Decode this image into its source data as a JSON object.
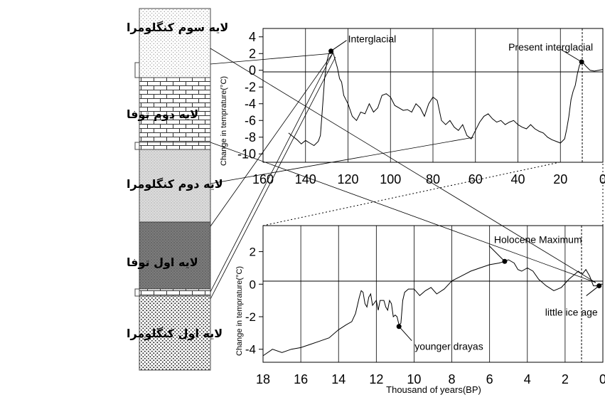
{
  "column": {
    "layers": [
      {
        "label": "لایه سوم کنگلومرا",
        "pattern": "fine-dots"
      },
      {
        "label": "لایه دوم توفا",
        "pattern": "bricks"
      },
      {
        "label": "لایه دوم کنگلومرا",
        "pattern": "light-dots"
      },
      {
        "label": "لایه اول توفا",
        "pattern": "dark-stipple"
      },
      {
        "label": "لایه اول کنگلومرا",
        "pattern": "coarse-dots"
      }
    ]
  },
  "chart_data": [
    {
      "type": "line",
      "ylabel": "Change in temprature(°C)",
      "xlabel": "",
      "xlim": [
        160,
        0
      ],
      "ylim": [
        -11,
        5
      ],
      "x_ticks": [
        160,
        140,
        120,
        100,
        80,
        60,
        40,
        20,
        0
      ],
      "y_ticks": [
        4,
        2,
        0,
        -2,
        -4,
        -6,
        -8,
        -10
      ],
      "x_tick_labels": [
        "160",
        "140",
        "120",
        "100",
        "80",
        "60",
        "40",
        "20",
        "0"
      ],
      "y_tick_labels": [
        "4",
        "2",
        "0",
        "-2",
        "-4",
        "-6",
        "-8",
        "-10"
      ],
      "grid": true,
      "series": [
        {
          "values_xy": [
            [
              148,
              -7.5
            ],
            [
              146,
              -7.9
            ],
            [
              144,
              -8.3
            ],
            [
              142,
              -8.8
            ],
            [
              140,
              -8.4
            ],
            [
              138,
              -8.7
            ],
            [
              136,
              -9.0
            ],
            [
              134,
              -8.5
            ],
            [
              133,
              -7.8
            ],
            [
              132,
              -4.5
            ],
            [
              131,
              -1.0
            ],
            [
              130,
              1.0
            ],
            [
              129,
              2.0
            ],
            [
              128,
              2.3
            ],
            [
              127,
              2.1
            ],
            [
              126,
              1.2
            ],
            [
              125,
              0.3
            ],
            [
              124,
              -1.0
            ],
            [
              123,
              -1.4
            ],
            [
              122,
              -3.0
            ],
            [
              120,
              -4.0
            ],
            [
              118,
              -5.5
            ],
            [
              116,
              -6.0
            ],
            [
              114,
              -5.0
            ],
            [
              112,
              -5.2
            ],
            [
              110,
              -4.0
            ],
            [
              108,
              -5.0
            ],
            [
              106,
              -4.5
            ],
            [
              104,
              -3.0
            ],
            [
              102,
              -2.8
            ],
            [
              100,
              -3.2
            ],
            [
              98,
              -4.2
            ],
            [
              96,
              -4.5
            ],
            [
              94,
              -4.8
            ],
            [
              92,
              -4.7
            ],
            [
              90,
              -5.0
            ],
            [
              88,
              -4.0
            ],
            [
              86,
              -4.5
            ],
            [
              84,
              -5.5
            ],
            [
              82,
              -4.0
            ],
            [
              80,
              -3.2
            ],
            [
              78,
              -3.6
            ],
            [
              76,
              -6.0
            ],
            [
              74,
              -6.5
            ],
            [
              72,
              -6.0
            ],
            [
              70,
              -6.8
            ],
            [
              68,
              -7.2
            ],
            [
              66,
              -6.5
            ],
            [
              64,
              -7.8
            ],
            [
              62,
              -8.2
            ],
            [
              60,
              -7.2
            ],
            [
              58,
              -6.2
            ],
            [
              56,
              -5.5
            ],
            [
              54,
              -5.2
            ],
            [
              52,
              -5.8
            ],
            [
              50,
              -6.2
            ],
            [
              48,
              -6.0
            ],
            [
              46,
              -6.5
            ],
            [
              44,
              -6.2
            ],
            [
              42,
              -6.0
            ],
            [
              40,
              -6.5
            ],
            [
              38,
              -6.8
            ],
            [
              36,
              -7.0
            ],
            [
              34,
              -6.5
            ],
            [
              32,
              -7.0
            ],
            [
              30,
              -7.3
            ],
            [
              28,
              -7.5
            ],
            [
              26,
              -8.0
            ],
            [
              24,
              -8.3
            ],
            [
              22,
              -8.5
            ],
            [
              20,
              -8.7
            ],
            [
              18,
              -8.2
            ],
            [
              17,
              -7.0
            ],
            [
              16,
              -5.5
            ],
            [
              15,
              -3.5
            ],
            [
              14,
              -2.5
            ],
            [
              13,
              -1.8
            ],
            [
              12,
              -0.4
            ],
            [
              11,
              0.6
            ],
            [
              10,
              1.0
            ],
            [
              9,
              0.8
            ],
            [
              8,
              0.5
            ],
            [
              6,
              0.0
            ],
            [
              4,
              -0.1
            ],
            [
              2,
              0.0
            ],
            [
              0,
              0.1
            ]
          ]
        }
      ],
      "annotations": [
        {
          "text": "Interglacial",
          "x": 128,
          "y": 2.3
        },
        {
          "text": "Present interglacial",
          "x": 10,
          "y": 1.0
        }
      ]
    },
    {
      "type": "line",
      "ylabel": "Change in temprature(°C)",
      "xlabel": "Thousand of years(BP)",
      "xlim": [
        18,
        0
      ],
      "ylim": [
        -4.8,
        3.6
      ],
      "x_ticks": [
        18,
        16,
        14,
        12,
        10,
        8,
        6,
        4,
        2,
        0
      ],
      "y_ticks": [
        2,
        0,
        -2,
        -4
      ],
      "x_tick_labels": [
        "18",
        "16",
        "14",
        "12",
        "10",
        "8",
        "6",
        "4",
        "2",
        "0"
      ],
      "y_tick_labels": [
        "2",
        "0",
        "-2",
        "-4"
      ],
      "grid": true,
      "series": [
        {
          "values_xy": [
            [
              18,
              -4.4
            ],
            [
              17.5,
              -4.0
            ],
            [
              17,
              -4.2
            ],
            [
              16.5,
              -4.0
            ],
            [
              16,
              -3.9
            ],
            [
              15.5,
              -3.7
            ],
            [
              15,
              -3.5
            ],
            [
              14.5,
              -3.3
            ],
            [
              14,
              -2.8
            ],
            [
              13.6,
              -2.5
            ],
            [
              13.3,
              -2.3
            ],
            [
              13.1,
              -1.8
            ],
            [
              12.9,
              -0.8
            ],
            [
              12.8,
              -0.4
            ],
            [
              12.7,
              -0.5
            ],
            [
              12.6,
              -1.2
            ],
            [
              12.5,
              -1.4
            ],
            [
              12.4,
              -0.8
            ],
            [
              12.3,
              -0.6
            ],
            [
              12.2,
              -1.3
            ],
            [
              12.0,
              -1.0
            ],
            [
              11.9,
              -1.6
            ],
            [
              11.8,
              -1.0
            ],
            [
              11.6,
              -1.0
            ],
            [
              11.5,
              -1.4
            ],
            [
              11.4,
              -1.6
            ],
            [
              11.3,
              -1.0
            ],
            [
              11.2,
              -1.2
            ],
            [
              11.1,
              -2.0
            ],
            [
              11.0,
              -1.9
            ],
            [
              10.9,
              -2.0
            ],
            [
              10.8,
              -2.5
            ],
            [
              10.7,
              -2.4
            ],
            [
              10.6,
              -1.0
            ],
            [
              10.5,
              -0.5
            ],
            [
              10.3,
              -0.3
            ],
            [
              10.0,
              -0.3
            ],
            [
              9.7,
              -0.7
            ],
            [
              9.4,
              -0.4
            ],
            [
              9.1,
              -0.2
            ],
            [
              8.8,
              -0.6
            ],
            [
              8.4,
              -0.3
            ],
            [
              8.0,
              0.2
            ],
            [
              7.5,
              0.5
            ],
            [
              7.0,
              0.8
            ],
            [
              6.5,
              1.0
            ],
            [
              6.0,
              1.2
            ],
            [
              5.5,
              1.3
            ],
            [
              5.2,
              1.4
            ],
            [
              5.0,
              1.5
            ],
            [
              4.7,
              1.3
            ],
            [
              4.5,
              0.9
            ],
            [
              4.3,
              0.8
            ],
            [
              4.0,
              1.0
            ],
            [
              3.7,
              0.8
            ],
            [
              3.4,
              0.3
            ],
            [
              3.0,
              -0.1
            ],
            [
              2.6,
              -0.4
            ],
            [
              2.2,
              -0.2
            ],
            [
              1.8,
              0.3
            ],
            [
              1.5,
              0.6
            ],
            [
              1.3,
              0.8
            ],
            [
              1.1,
              0.6
            ],
            [
              0.9,
              0.9
            ],
            [
              0.7,
              0.5
            ],
            [
              0.5,
              -0.1
            ],
            [
              0.3,
              -0.1
            ],
            [
              0.1,
              0.0
            ],
            [
              0,
              0.0
            ]
          ]
        }
      ],
      "annotations": [
        {
          "text": "Holocene Maximum",
          "x": 5.2,
          "y": 1.4
        },
        {
          "text": "little ice age",
          "x": 0.2,
          "y": -0.1
        },
        {
          "text": "younger drayas",
          "x": 10.8,
          "y": -2.6
        }
      ]
    }
  ]
}
